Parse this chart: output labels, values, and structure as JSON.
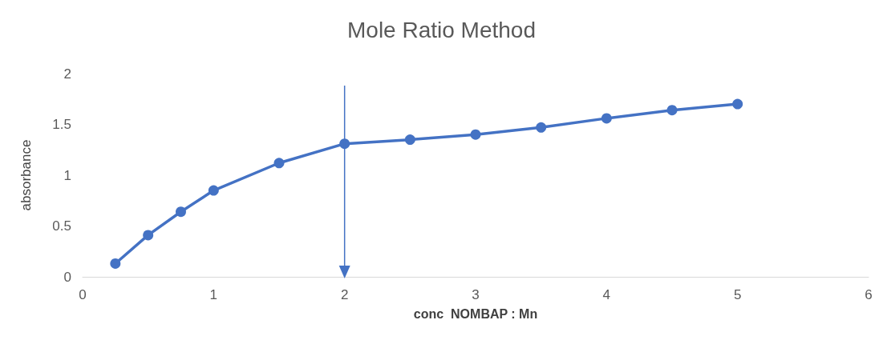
{
  "chart_data": {
    "type": "line",
    "title": "Mole Ratio Method",
    "xlabel": "conc  NOMBAP : Mn",
    "ylabel": "absorbance",
    "x": [
      0.25,
      0.5,
      0.75,
      1,
      1.5,
      2,
      2.5,
      3,
      3.5,
      4,
      4.5,
      5
    ],
    "series": [
      {
        "color": "#4472c4",
        "values": [
          0.13,
          0.41,
          0.64,
          0.85,
          1.12,
          1.31,
          1.35,
          1.4,
          1.47,
          1.56,
          1.64,
          1.7
        ]
      }
    ],
    "xlim": [
      0,
      6
    ],
    "xticks": [
      0,
      1,
      2,
      3,
      4,
      5,
      6
    ],
    "ylim": [
      0,
      2
    ],
    "yticks": [
      0,
      0.5,
      1,
      1.5,
      2
    ],
    "grid": false,
    "marker": "circle",
    "line_style": "solid",
    "ref_lines": [
      {
        "axis": "x",
        "value": 2,
        "color": "#4472c4"
      }
    ]
  }
}
